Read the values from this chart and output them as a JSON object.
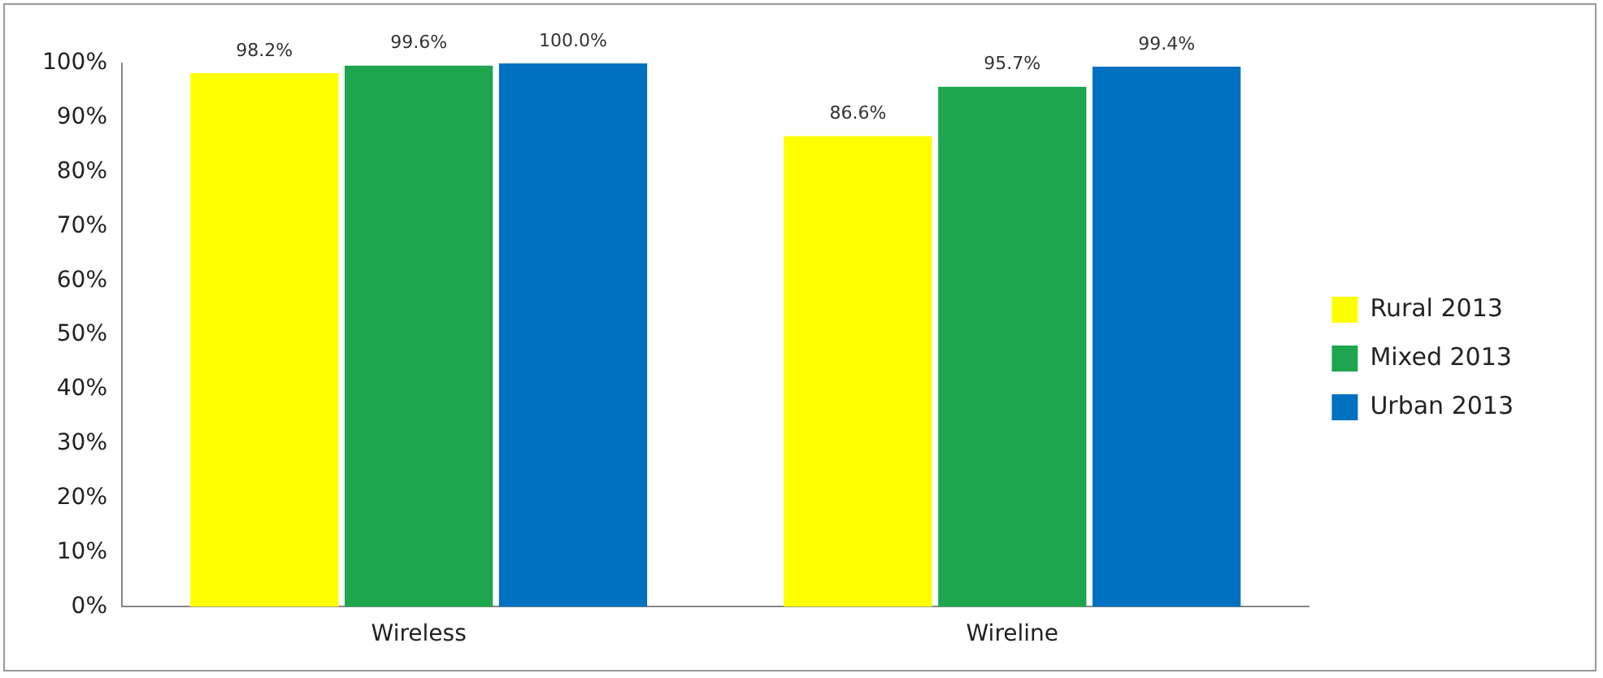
{
  "chart_data": {
    "type": "bar",
    "categories": [
      "Wireless",
      "Wireline"
    ],
    "series": [
      {
        "name": "Rural 2013",
        "color": "#ffff00",
        "values": [
          98.2,
          86.6
        ],
        "value_labels": [
          "98.2%",
          "86.6%"
        ]
      },
      {
        "name": "Mixed 2013",
        "color": "#1ea64f",
        "values": [
          99.6,
          95.7
        ],
        "value_labels": [
          "99.6%",
          "95.7%"
        ]
      },
      {
        "name": "Urban 2013",
        "color": "#0070c0",
        "values": [
          100.0,
          99.4
        ],
        "value_labels": [
          "100.0%",
          "99.4%"
        ]
      }
    ],
    "ylim": [
      0,
      100
    ],
    "yticks": [
      {
        "value": 0,
        "label": "0%"
      },
      {
        "value": 10,
        "label": "10%"
      },
      {
        "value": 20,
        "label": "20%"
      },
      {
        "value": 30,
        "label": "30%"
      },
      {
        "value": 40,
        "label": "40%"
      },
      {
        "value": 50,
        "label": "50%"
      },
      {
        "value": 60,
        "label": "60%"
      },
      {
        "value": 70,
        "label": "70%"
      },
      {
        "value": 80,
        "label": "80%"
      },
      {
        "value": 90,
        "label": "90%"
      },
      {
        "value": 100,
        "label": "100%"
      }
    ],
    "grid": false,
    "legend": "right"
  }
}
